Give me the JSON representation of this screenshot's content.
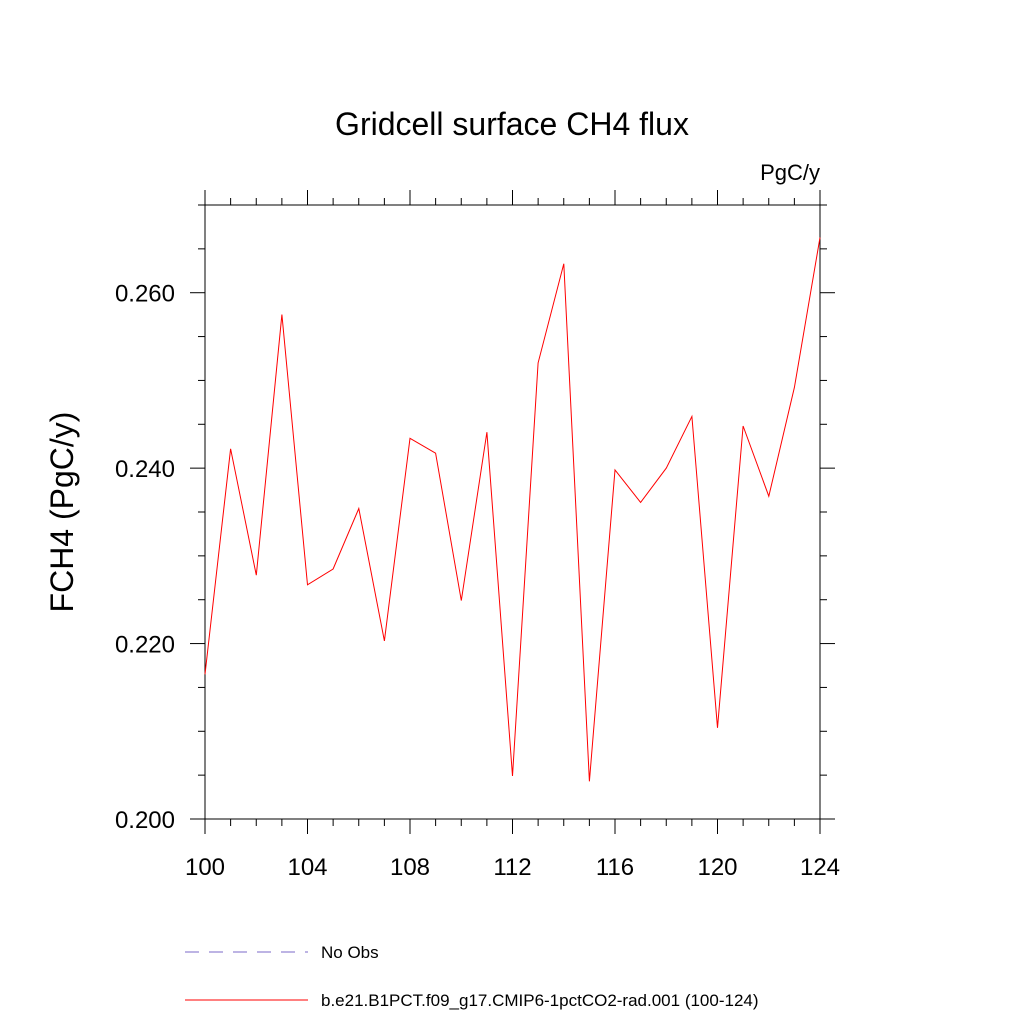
{
  "chart_data": {
    "type": "line",
    "title": "Gridcell surface CH4 flux",
    "units": "PgC/y",
    "xlabel": "",
    "ylabel": "FCH4  (PgC/y)",
    "xlim": [
      100,
      124
    ],
    "ylim": [
      0.2,
      0.27
    ],
    "x_ticks": [
      100,
      104,
      108,
      112,
      116,
      120,
      124
    ],
    "x_tick_labels": [
      "100",
      "104",
      "108",
      "112",
      "116",
      "120",
      "124"
    ],
    "y_ticks": [
      0.2,
      0.22,
      0.24,
      0.26
    ],
    "y_tick_labels": [
      "0.200",
      "0.220",
      "0.240",
      "0.260"
    ],
    "grid": false,
    "legend_placement": "bottom",
    "series": [
      {
        "name": "b.e21.B1PCT.f09_g17.CMIP6-1pctCO2-rad.001 (100-124)",
        "color": "#ff0000",
        "style": "solid",
        "x": [
          100,
          101,
          102,
          103,
          104,
          105,
          106,
          107,
          108,
          109,
          110,
          111,
          112,
          113,
          114,
          115,
          116,
          117,
          118,
          119,
          120,
          121,
          122,
          123,
          124
        ],
        "values": [
          0.2165,
          0.2422,
          0.2278,
          0.2575,
          0.2267,
          0.2285,
          0.2354,
          0.2203,
          0.2434,
          0.2417,
          0.2249,
          0.2441,
          0.2049,
          0.252,
          0.2633,
          0.2043,
          0.2398,
          0.2361,
          0.24,
          0.2459,
          0.2104,
          0.2448,
          0.2368,
          0.2492,
          0.2663
        ]
      }
    ],
    "legend": [
      {
        "label": "No Obs",
        "color": "#7b68c8",
        "style": "dashed"
      },
      {
        "label": "b.e21.B1PCT.f09_g17.CMIP6-1pctCO2-rad.001 (100-124)",
        "color": "#ff0000",
        "style": "solid"
      }
    ]
  }
}
